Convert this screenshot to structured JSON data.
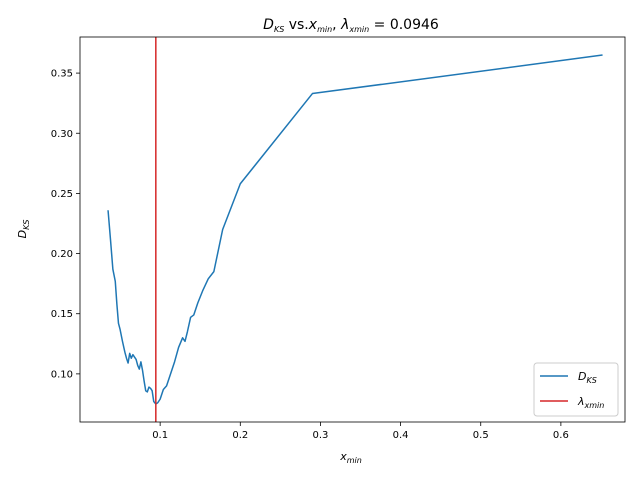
{
  "chart_data": {
    "type": "line",
    "title": "D_KS vs.x_min, λ_xmin = 0.0946",
    "title_parts": {
      "d": "D",
      "d_sub": "KS",
      "vs": " vs.",
      "x": "x",
      "x_sub": "min",
      "comma": ", ",
      "lambda": "λ",
      "lambda_sub": "xmin",
      "eq": " = 0.0946"
    },
    "xlabel": "x_min",
    "xlabel_parts": {
      "main": "x",
      "sub": "min"
    },
    "ylabel": "D_KS",
    "ylabel_parts": {
      "main": "D",
      "sub": "KS"
    },
    "xlim": [
      0.0,
      0.68
    ],
    "ylim": [
      0.06,
      0.38
    ],
    "xticks": [
      0.1,
      0.2,
      0.3,
      0.4,
      0.5,
      0.6
    ],
    "xtick_labels": [
      "0.1",
      "0.2",
      "0.3",
      "0.4",
      "0.5",
      "0.6"
    ],
    "yticks": [
      0.1,
      0.15,
      0.2,
      0.25,
      0.3,
      0.35
    ],
    "ytick_labels": [
      "0.10",
      "0.15",
      "0.20",
      "0.25",
      "0.30",
      "0.35"
    ],
    "grid": false,
    "legend_position": "bottom-right",
    "series": [
      {
        "name": "D_KS",
        "legend_main": "D",
        "legend_sub": "KS",
        "color": "#1f77b4",
        "x": [
          0.035,
          0.038,
          0.041,
          0.044,
          0.046,
          0.048,
          0.05,
          0.053,
          0.056,
          0.058,
          0.06,
          0.062,
          0.064,
          0.066,
          0.068,
          0.07,
          0.072,
          0.074,
          0.076,
          0.078,
          0.08,
          0.082,
          0.084,
          0.086,
          0.088,
          0.09,
          0.092,
          0.0946,
          0.097,
          0.1,
          0.104,
          0.108,
          0.113,
          0.118,
          0.123,
          0.128,
          0.131,
          0.134,
          0.138,
          0.142,
          0.147,
          0.153,
          0.16,
          0.167,
          0.178,
          0.2,
          0.29,
          0.652
        ],
        "y": [
          0.236,
          0.212,
          0.187,
          0.177,
          0.158,
          0.142,
          0.137,
          0.127,
          0.118,
          0.113,
          0.109,
          0.117,
          0.113,
          0.116,
          0.114,
          0.112,
          0.107,
          0.104,
          0.11,
          0.103,
          0.094,
          0.086,
          0.085,
          0.089,
          0.088,
          0.086,
          0.077,
          0.075,
          0.076,
          0.079,
          0.087,
          0.09,
          0.1,
          0.11,
          0.122,
          0.13,
          0.127,
          0.135,
          0.147,
          0.149,
          0.159,
          0.169,
          0.179,
          0.185,
          0.22,
          0.258,
          0.333,
          0.365
        ]
      },
      {
        "name": "λ_xmin",
        "legend_main": "λ",
        "legend_sub": "xmin",
        "color": "#d62728",
        "type": "vline",
        "x_value": 0.0946
      }
    ]
  }
}
